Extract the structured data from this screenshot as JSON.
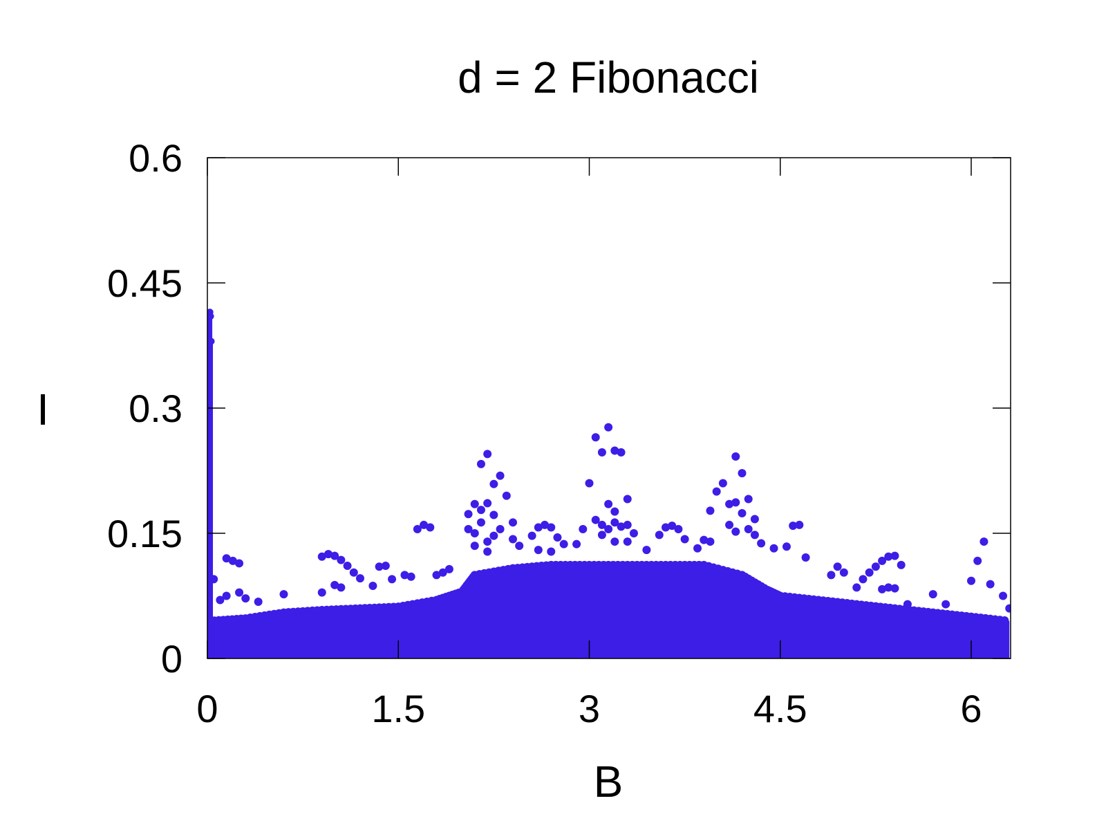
{
  "chart_data": {
    "type": "scatter",
    "title": "d = 2 Fibonacci",
    "xlabel": "B",
    "ylabel": "I",
    "xlim": [
      0,
      6.3
    ],
    "ylim": [
      0,
      0.6
    ],
    "xticks": [
      {
        "value": 0,
        "label": "0"
      },
      {
        "value": 1.5,
        "label": "1.5"
      },
      {
        "value": 3,
        "label": "3"
      },
      {
        "value": 4.5,
        "label": "4.5"
      },
      {
        "value": 6,
        "label": "6"
      }
    ],
    "yticks": [
      {
        "value": 0,
        "label": "0"
      },
      {
        "value": 0.15,
        "label": "0.15"
      },
      {
        "value": 0.3,
        "label": "0.3"
      },
      {
        "value": 0.45,
        "label": "0.45"
      },
      {
        "value": 0.6,
        "label": "0.6"
      }
    ],
    "grid": false,
    "legend": "none",
    "marker_color": "#3c1ee6",
    "series": [
      {
        "dense_band": {
          "x": [
            0.02,
            0.3,
            0.6,
            0.9,
            1.2,
            1.5,
            1.8,
            2.0,
            2.1,
            2.4,
            2.7,
            3.0,
            3.3,
            3.6,
            3.9,
            4.2,
            4.4,
            4.5,
            4.8,
            5.1,
            5.4,
            5.7,
            6.0,
            6.3
          ],
          "upper": [
            0.045,
            0.048,
            0.055,
            0.058,
            0.06,
            0.062,
            0.07,
            0.08,
            0.1,
            0.108,
            0.112,
            0.112,
            0.112,
            0.112,
            0.112,
            0.1,
            0.082,
            0.075,
            0.07,
            0.065,
            0.06,
            0.055,
            0.05,
            0.045
          ]
        },
        "spike": {
          "x": [
            0.0,
            0.005,
            0.01,
            0.015,
            0.02,
            0.025,
            0.03
          ],
          "y": [
            0.11,
            0.21,
            0.32,
            0.41,
            0.415,
            0.41,
            0.38
          ]
        },
        "points": [
          {
            "x": 0.05,
            "y": 0.095
          },
          {
            "x": 0.1,
            "y": 0.07
          },
          {
            "x": 0.15,
            "y": 0.075
          },
          {
            "x": 0.15,
            "y": 0.12
          },
          {
            "x": 0.2,
            "y": 0.117
          },
          {
            "x": 0.25,
            "y": 0.114
          },
          {
            "x": 0.25,
            "y": 0.079
          },
          {
            "x": 0.3,
            "y": 0.072
          },
          {
            "x": 0.4,
            "y": 0.068
          },
          {
            "x": 0.6,
            "y": 0.077
          },
          {
            "x": 0.9,
            "y": 0.079
          },
          {
            "x": 0.9,
            "y": 0.122
          },
          {
            "x": 0.95,
            "y": 0.125
          },
          {
            "x": 1.0,
            "y": 0.123
          },
          {
            "x": 1.05,
            "y": 0.118
          },
          {
            "x": 1.1,
            "y": 0.111
          },
          {
            "x": 1.15,
            "y": 0.103
          },
          {
            "x": 1.2,
            "y": 0.096
          },
          {
            "x": 1.0,
            "y": 0.088
          },
          {
            "x": 1.05,
            "y": 0.085
          },
          {
            "x": 1.3,
            "y": 0.087
          },
          {
            "x": 1.35,
            "y": 0.11
          },
          {
            "x": 1.4,
            "y": 0.111
          },
          {
            "x": 1.45,
            "y": 0.095
          },
          {
            "x": 1.55,
            "y": 0.1
          },
          {
            "x": 1.6,
            "y": 0.098
          },
          {
            "x": 1.65,
            "y": 0.155
          },
          {
            "x": 1.7,
            "y": 0.16
          },
          {
            "x": 1.75,
            "y": 0.157
          },
          {
            "x": 1.8,
            "y": 0.1
          },
          {
            "x": 1.85,
            "y": 0.103
          },
          {
            "x": 1.9,
            "y": 0.107
          },
          {
            "x": 2.05,
            "y": 0.173
          },
          {
            "x": 2.1,
            "y": 0.185
          },
          {
            "x": 2.15,
            "y": 0.178
          },
          {
            "x": 2.2,
            "y": 0.186
          },
          {
            "x": 2.25,
            "y": 0.172
          },
          {
            "x": 2.05,
            "y": 0.155
          },
          {
            "x": 2.1,
            "y": 0.15
          },
          {
            "x": 2.15,
            "y": 0.163
          },
          {
            "x": 2.2,
            "y": 0.14
          },
          {
            "x": 2.25,
            "y": 0.147
          },
          {
            "x": 2.3,
            "y": 0.155
          },
          {
            "x": 2.1,
            "y": 0.135
          },
          {
            "x": 2.2,
            "y": 0.128
          },
          {
            "x": 2.15,
            "y": 0.233
          },
          {
            "x": 2.2,
            "y": 0.245
          },
          {
            "x": 2.25,
            "y": 0.209
          },
          {
            "x": 2.3,
            "y": 0.219
          },
          {
            "x": 2.35,
            "y": 0.195
          },
          {
            "x": 2.4,
            "y": 0.163
          },
          {
            "x": 2.4,
            "y": 0.143
          },
          {
            "x": 2.45,
            "y": 0.135
          },
          {
            "x": 2.55,
            "y": 0.147
          },
          {
            "x": 2.6,
            "y": 0.157
          },
          {
            "x": 2.65,
            "y": 0.16
          },
          {
            "x": 2.7,
            "y": 0.157
          },
          {
            "x": 2.75,
            "y": 0.145
          },
          {
            "x": 2.8,
            "y": 0.137
          },
          {
            "x": 2.6,
            "y": 0.13
          },
          {
            "x": 2.7,
            "y": 0.128
          },
          {
            "x": 2.9,
            "y": 0.137
          },
          {
            "x": 2.95,
            "y": 0.155
          },
          {
            "x": 3.0,
            "y": 0.21
          },
          {
            "x": 3.05,
            "y": 0.265
          },
          {
            "x": 3.1,
            "y": 0.247
          },
          {
            "x": 3.15,
            "y": 0.277
          },
          {
            "x": 3.2,
            "y": 0.249
          },
          {
            "x": 3.25,
            "y": 0.247
          },
          {
            "x": 3.3,
            "y": 0.191
          },
          {
            "x": 3.15,
            "y": 0.185
          },
          {
            "x": 3.2,
            "y": 0.176
          },
          {
            "x": 3.05,
            "y": 0.166
          },
          {
            "x": 3.1,
            "y": 0.16
          },
          {
            "x": 3.15,
            "y": 0.155
          },
          {
            "x": 3.2,
            "y": 0.163
          },
          {
            "x": 3.25,
            "y": 0.158
          },
          {
            "x": 3.3,
            "y": 0.16
          },
          {
            "x": 3.35,
            "y": 0.15
          },
          {
            "x": 3.1,
            "y": 0.148
          },
          {
            "x": 3.2,
            "y": 0.14
          },
          {
            "x": 3.3,
            "y": 0.14
          },
          {
            "x": 3.45,
            "y": 0.13
          },
          {
            "x": 3.55,
            "y": 0.148
          },
          {
            "x": 3.6,
            "y": 0.157
          },
          {
            "x": 3.65,
            "y": 0.159
          },
          {
            "x": 3.7,
            "y": 0.155
          },
          {
            "x": 3.75,
            "y": 0.143
          },
          {
            "x": 3.85,
            "y": 0.132
          },
          {
            "x": 3.9,
            "y": 0.142
          },
          {
            "x": 3.95,
            "y": 0.14
          },
          {
            "x": 3.95,
            "y": 0.177
          },
          {
            "x": 4.0,
            "y": 0.2
          },
          {
            "x": 4.05,
            "y": 0.21
          },
          {
            "x": 4.1,
            "y": 0.185
          },
          {
            "x": 4.15,
            "y": 0.187
          },
          {
            "x": 4.2,
            "y": 0.174
          },
          {
            "x": 4.15,
            "y": 0.242
          },
          {
            "x": 4.2,
            "y": 0.222
          },
          {
            "x": 4.25,
            "y": 0.191
          },
          {
            "x": 4.3,
            "y": 0.167
          },
          {
            "x": 4.1,
            "y": 0.16
          },
          {
            "x": 4.15,
            "y": 0.152
          },
          {
            "x": 4.25,
            "y": 0.155
          },
          {
            "x": 4.3,
            "y": 0.148
          },
          {
            "x": 4.35,
            "y": 0.138
          },
          {
            "x": 4.45,
            "y": 0.132
          },
          {
            "x": 4.55,
            "y": 0.134
          },
          {
            "x": 4.6,
            "y": 0.159
          },
          {
            "x": 4.65,
            "y": 0.16
          },
          {
            "x": 4.7,
            "y": 0.121
          },
          {
            "x": 4.9,
            "y": 0.1
          },
          {
            "x": 4.95,
            "y": 0.11
          },
          {
            "x": 5.0,
            "y": 0.103
          },
          {
            "x": 5.1,
            "y": 0.085
          },
          {
            "x": 5.15,
            "y": 0.095
          },
          {
            "x": 5.2,
            "y": 0.103
          },
          {
            "x": 5.25,
            "y": 0.11
          },
          {
            "x": 5.3,
            "y": 0.117
          },
          {
            "x": 5.35,
            "y": 0.122
          },
          {
            "x": 5.4,
            "y": 0.123
          },
          {
            "x": 5.45,
            "y": 0.112
          },
          {
            "x": 5.3,
            "y": 0.083
          },
          {
            "x": 5.35,
            "y": 0.085
          },
          {
            "x": 5.4,
            "y": 0.084
          },
          {
            "x": 5.5,
            "y": 0.065
          },
          {
            "x": 5.7,
            "y": 0.077
          },
          {
            "x": 5.8,
            "y": 0.065
          },
          {
            "x": 6.0,
            "y": 0.093
          },
          {
            "x": 6.05,
            "y": 0.117
          },
          {
            "x": 6.1,
            "y": 0.14
          },
          {
            "x": 6.15,
            "y": 0.089
          },
          {
            "x": 6.25,
            "y": 0.075
          },
          {
            "x": 6.3,
            "y": 0.06
          }
        ]
      }
    ]
  }
}
